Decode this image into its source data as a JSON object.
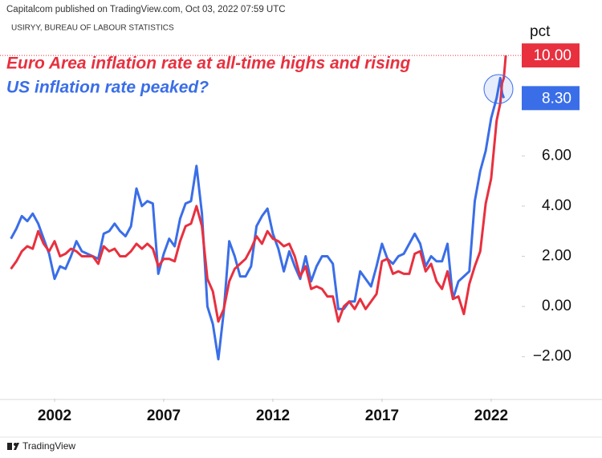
{
  "header": {
    "published": "Capitalcom published on TradingView.com, Oct 03, 2022 07:59 UTC",
    "symbol": "USIRYY, BUREAU OF LABOUR STATISTICS"
  },
  "footer": {
    "brand": "TradingView"
  },
  "chart_data": {
    "type": "line",
    "annotations": [
      "Euro Area inflation rate at all-time highs and rising",
      "US inflation rate peaked?"
    ],
    "y_unit": "pct",
    "xlim": [
      1999.5,
      2023.4
    ],
    "ylim": [
      -3.67,
      11.25
    ],
    "xticks": [
      2002,
      2007,
      2012,
      2017,
      2022
    ],
    "yticks": [
      {
        "value": -2,
        "label": "−2.00"
      },
      {
        "value": 0,
        "label": "0.00"
      },
      {
        "value": 2,
        "label": "2.00"
      },
      {
        "value": 4,
        "label": "4.00"
      },
      {
        "value": 6,
        "label": "6.00"
      },
      {
        "value": 8,
        "label": "8.00"
      }
    ],
    "x": [
      2000.0,
      2000.25,
      2000.5,
      2000.75,
      2001.0,
      2001.25,
      2001.5,
      2001.75,
      2002.0,
      2002.25,
      2002.5,
      2002.75,
      2003.0,
      2003.25,
      2003.5,
      2003.75,
      2004.0,
      2004.25,
      2004.5,
      2004.75,
      2005.0,
      2005.25,
      2005.5,
      2005.75,
      2006.0,
      2006.25,
      2006.5,
      2006.75,
      2007.0,
      2007.25,
      2007.5,
      2007.75,
      2008.0,
      2008.25,
      2008.5,
      2008.75,
      2009.0,
      2009.25,
      2009.5,
      2009.75,
      2010.0,
      2010.25,
      2010.5,
      2010.75,
      2011.0,
      2011.25,
      2011.5,
      2011.75,
      2012.0,
      2012.25,
      2012.5,
      2012.75,
      2013.0,
      2013.25,
      2013.5,
      2013.75,
      2014.0,
      2014.25,
      2014.5,
      2014.75,
      2015.0,
      2015.25,
      2015.5,
      2015.75,
      2016.0,
      2016.25,
      2016.5,
      2016.75,
      2017.0,
      2017.25,
      2017.5,
      2017.75,
      2018.0,
      2018.25,
      2018.5,
      2018.75,
      2019.0,
      2019.25,
      2019.5,
      2019.75,
      2020.0,
      2020.25,
      2020.5,
      2020.75,
      2021.0,
      2021.25,
      2021.5,
      2021.75,
      2022.0,
      2022.25,
      2022.42,
      2022.5,
      2022.58,
      2022.67
    ],
    "series": [
      {
        "name": "US inflation rate",
        "color": "#3a6ee8",
        "last_label": {
          "value": 8.3,
          "label": "8.30"
        },
        "values": [
          2.7,
          3.1,
          3.6,
          3.4,
          3.7,
          3.3,
          2.7,
          2.1,
          1.1,
          1.6,
          1.5,
          2.0,
          2.6,
          2.2,
          2.1,
          2.0,
          1.9,
          2.9,
          3.0,
          3.3,
          3.0,
          2.8,
          3.2,
          4.7,
          4.0,
          4.2,
          4.1,
          1.3,
          2.1,
          2.7,
          2.4,
          3.5,
          4.1,
          4.2,
          5.6,
          3.7,
          0.0,
          -0.7,
          -2.1,
          -0.2,
          2.6,
          2.0,
          1.2,
          1.2,
          1.6,
          3.2,
          3.6,
          3.9,
          2.9,
          2.3,
          1.4,
          2.2,
          1.6,
          1.1,
          2.0,
          1.0,
          1.6,
          2.0,
          2.0,
          1.7,
          -0.1,
          -0.1,
          0.2,
          0.2,
          1.4,
          1.1,
          0.8,
          1.6,
          2.5,
          1.9,
          1.7,
          2.0,
          2.1,
          2.5,
          2.9,
          2.5,
          1.6,
          2.0,
          1.8,
          1.8,
          2.5,
          0.3,
          1.0,
          1.2,
          1.4,
          4.2,
          5.4,
          6.2,
          7.5,
          8.3,
          9.1,
          8.5,
          8.3,
          null
        ]
      },
      {
        "name": "Euro Area inflation rate",
        "color": "#e8303f",
        "last_label": {
          "value": 10,
          "label": "10.00"
        },
        "values": [
          1.5,
          1.8,
          2.2,
          2.4,
          2.3,
          3.0,
          2.5,
          2.2,
          2.6,
          2.0,
          2.1,
          2.3,
          2.2,
          2.0,
          2.0,
          2.0,
          1.7,
          2.4,
          2.2,
          2.3,
          2.0,
          2.0,
          2.2,
          2.5,
          2.3,
          2.5,
          2.3,
          1.6,
          1.9,
          1.9,
          1.8,
          2.6,
          3.2,
          3.3,
          4.0,
          3.2,
          1.1,
          0.6,
          -0.6,
          -0.1,
          1.0,
          1.5,
          1.7,
          1.9,
          2.3,
          2.8,
          2.5,
          3.0,
          2.7,
          2.6,
          2.4,
          2.5,
          2.0,
          1.2,
          1.6,
          0.7,
          0.8,
          0.7,
          0.4,
          0.4,
          -0.6,
          0.0,
          0.2,
          -0.1,
          0.3,
          -0.1,
          0.2,
          0.5,
          1.8,
          1.9,
          1.3,
          1.4,
          1.3,
          1.3,
          2.1,
          2.2,
          1.4,
          1.7,
          1.0,
          0.7,
          1.4,
          0.3,
          0.4,
          -0.3,
          0.9,
          1.6,
          2.2,
          4.1,
          5.1,
          7.4,
          8.1,
          8.9,
          9.1,
          10.0
        ]
      }
    ]
  }
}
